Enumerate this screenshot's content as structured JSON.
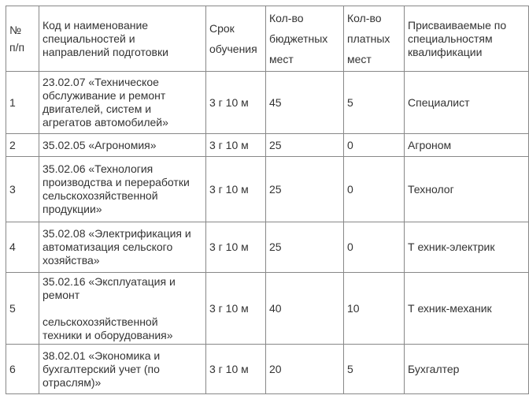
{
  "table": {
    "headers": [
      "№\nп/п",
      "Код и наименование\nспециальностей и\nнаправлений подготовки",
      "Срок\nобучения",
      "Кол-во\nбюджетных\nмест",
      "Кол-во\nплатных\nмест",
      "Присваиваемые по\nспециальностям\nквалификации"
    ],
    "rows": [
      [
        "1",
        "23.02.07 «Техническое\nобслуживание и ремонт\nдвигателей, систем и\nагрегатов автомобилей»",
        "3 г 10 м",
        "45",
        "5",
        "Специалист"
      ],
      [
        "2",
        "35.02.05 «Агрономия»",
        "3 г 10 м",
        "25",
        "0",
        "Агроном"
      ],
      [
        "3",
        "35.02.06 «Технология\nпроизводства и переработки\nсельскохозяйственной\nпродукции»",
        "3 г 10 м",
        "25",
        "0",
        "Технолог"
      ],
      [
        "4",
        "35.02.08 «Электрификация и\nавтоматизация сельского\nхозяйства»",
        "3 г 10 м",
        "25",
        "0",
        "Т ехник-электрик"
      ],
      [
        "5",
        "35.02.16 «Эксплуатация и\nремонт\n\nсельскохозяйственной\nтехники и оборудования»",
        "3 г 10 м",
        "40",
        "10",
        "Т ехник-механик"
      ],
      [
        "6",
        "38.02.01 «Экономика и\nбухгалтерский учет (по\nотраслям)»",
        "3 г 10 м",
        "20",
        "5",
        "Бухгалтер"
      ]
    ]
  }
}
